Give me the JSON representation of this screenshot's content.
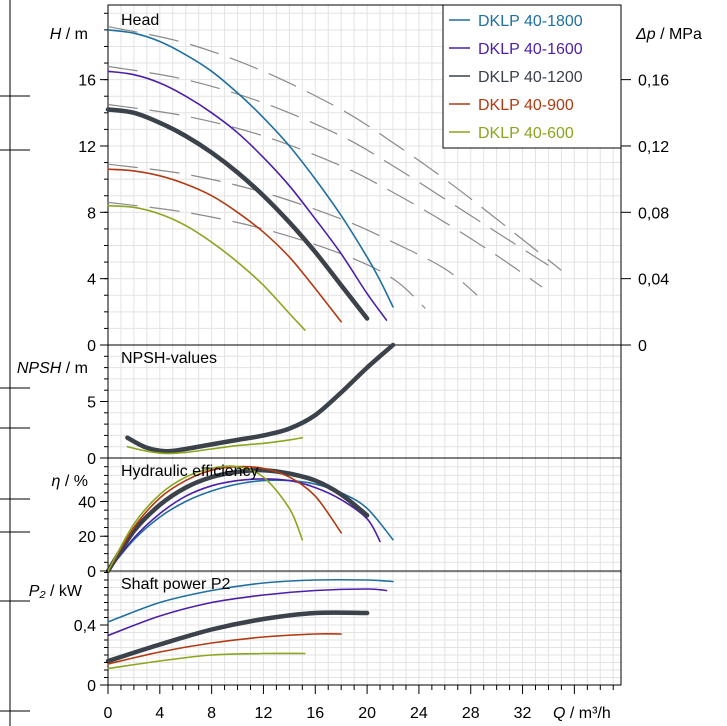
{
  "colors": {
    "DKLP 40-1800": "#1f6fa0",
    "DKLP 40-1600": "#4b1fa8",
    "DKLP 40-1200": "#3b424a",
    "DKLP 40-900": "#b23a12",
    "DKLP 40-600": "#8aa61e",
    "grid": "#e3e3e3",
    "dashed": "#8a8a8a"
  },
  "legend": [
    "DKLP 40-1800",
    "DKLP 40-1600",
    "DKLP 40-1200",
    "DKLP 40-900",
    "DKLP 40-600"
  ],
  "chart_data": [
    {
      "type": "line",
      "panel": "Head",
      "title": "Head",
      "ylabel_var": "H",
      "ylabel_unit": " / m",
      "y2label_var": "Δp",
      "y2label_unit": " / MPa",
      "ylim": [
        0,
        20.5
      ],
      "yticks": [
        "0",
        "4",
        "8",
        "12",
        "16"
      ],
      "y2ticks": [
        "0",
        "0,04",
        "0,08",
        "0,12",
        "0,16"
      ],
      "series": [
        {
          "name": "DKLP 40-1800",
          "x": [
            0,
            2,
            4,
            6,
            8,
            10,
            12,
            14,
            16,
            18,
            20,
            21,
            22
          ],
          "y": [
            19.0,
            18.8,
            18.3,
            17.5,
            16.5,
            15.2,
            13.7,
            12.0,
            10.0,
            7.8,
            5.3,
            3.9,
            2.3
          ]
        },
        {
          "name": "DKLP 40-1600",
          "x": [
            0,
            2,
            4,
            6,
            8,
            10,
            12,
            14,
            16,
            18,
            20,
            21.5
          ],
          "y": [
            16.5,
            16.3,
            15.8,
            15.0,
            14.0,
            12.8,
            11.3,
            9.6,
            7.6,
            5.5,
            3.1,
            1.5
          ]
        },
        {
          "name": "DKLP 40-1200",
          "x": [
            0,
            2,
            4,
            6,
            8,
            10,
            12,
            14,
            16,
            18,
            20
          ],
          "y": [
            14.2,
            14.0,
            13.4,
            12.6,
            11.6,
            10.4,
            9.0,
            7.4,
            5.6,
            3.6,
            1.6
          ]
        },
        {
          "name": "DKLP 40-900",
          "x": [
            0,
            2,
            4,
            6,
            8,
            10,
            12,
            14,
            16,
            18
          ],
          "y": [
            10.6,
            10.5,
            10.2,
            9.7,
            9.0,
            8.0,
            6.8,
            5.3,
            3.4,
            1.4
          ]
        },
        {
          "name": "DKLP 40-600",
          "x": [
            0,
            2,
            4,
            6,
            8,
            10,
            12,
            14,
            15.2
          ],
          "y": [
            8.4,
            8.3,
            7.9,
            7.2,
            6.2,
            5.0,
            3.6,
            1.9,
            0.9
          ]
        }
      ],
      "dashed_series": [
        {
          "x": [
            0,
            6,
            12,
            18,
            22,
            26,
            30,
            35
          ],
          "y": [
            19.2,
            18.2,
            16.5,
            14.2,
            12.2,
            10.0,
            7.6,
            4.5
          ]
        },
        {
          "x": [
            0,
            6,
            12,
            18,
            22,
            26,
            30,
            34
          ],
          "y": [
            16.8,
            16.0,
            14.6,
            12.6,
            10.8,
            8.8,
            6.8,
            4.8
          ]
        },
        {
          "x": [
            0,
            6,
            12,
            18,
            22,
            26,
            30,
            33.5
          ],
          "y": [
            14.5,
            13.8,
            12.6,
            10.8,
            9.2,
            7.4,
            5.4,
            3.5
          ]
        },
        {
          "x": [
            0,
            6,
            12,
            18,
            22,
            26,
            28.5
          ],
          "y": [
            10.9,
            10.3,
            9.2,
            7.6,
            6.2,
            4.6,
            3.0
          ]
        },
        {
          "x": [
            0,
            6,
            12,
            18,
            22,
            24.5
          ],
          "y": [
            8.6,
            8.0,
            7.0,
            5.5,
            4.0,
            2.2
          ]
        }
      ]
    },
    {
      "type": "line",
      "panel": "NPSH",
      "title": "NPSH-values",
      "ylabel_var": "NPSH",
      "ylabel_unit": " / m",
      "ylim": [
        0,
        10
      ],
      "yticks": [
        "0",
        "5"
      ],
      "series": [
        {
          "name": "DKLP 40-1200",
          "x": [
            1.5,
            3,
            4.5,
            6,
            8,
            10,
            12,
            14,
            16,
            18,
            20,
            22
          ],
          "y": [
            1.8,
            0.9,
            0.6,
            0.8,
            1.2,
            1.6,
            2.0,
            2.6,
            3.8,
            5.8,
            8.0,
            10.0
          ]
        },
        {
          "name": "DKLP 40-600",
          "x": [
            1.5,
            3,
            4.5,
            6,
            8,
            10,
            12,
            14,
            15
          ],
          "y": [
            1.0,
            0.6,
            0.4,
            0.5,
            0.8,
            1.1,
            1.3,
            1.6,
            1.8
          ]
        }
      ]
    },
    {
      "type": "line",
      "panel": "Efficiency",
      "title": "Hydraulic efficiency",
      "ylabel_var": "η",
      "ylabel_unit": " / %",
      "ylim": [
        0,
        65
      ],
      "yticks": [
        "0",
        "20",
        "40"
      ],
      "series": [
        {
          "name": "DKLP 40-1800",
          "x": [
            0,
            2,
            4,
            6,
            8,
            10,
            12,
            14,
            16,
            18,
            20,
            22
          ],
          "y": [
            0,
            18,
            31,
            40,
            46,
            50,
            52,
            52,
            50,
            45,
            36,
            18
          ]
        },
        {
          "name": "DKLP 40-1600",
          "x": [
            0,
            2,
            4,
            6,
            8,
            10,
            12,
            14,
            16,
            18,
            20,
            21
          ],
          "y": [
            0,
            19,
            33,
            43,
            49,
            52,
            53,
            52,
            48,
            41,
            30,
            17
          ]
        },
        {
          "name": "DKLP 40-1200",
          "x": [
            0,
            2,
            4,
            6,
            8,
            10,
            12,
            14,
            16,
            18,
            20
          ],
          "y": [
            0,
            23,
            38,
            48,
            54,
            57,
            58,
            56,
            52,
            44,
            32
          ]
        },
        {
          "name": "DKLP 40-900",
          "x": [
            0,
            2,
            4,
            6,
            8,
            10,
            12,
            14,
            16,
            18
          ],
          "y": [
            0,
            25,
            42,
            52,
            58,
            60,
            59,
            54,
            43,
            22
          ]
        },
        {
          "name": "DKLP 40-600",
          "x": [
            0,
            2,
            4,
            6,
            8,
            10,
            12,
            14,
            15
          ],
          "y": [
            0,
            27,
            44,
            54,
            59,
            60,
            54,
            36,
            18
          ]
        }
      ]
    },
    {
      "type": "line",
      "panel": "Power",
      "title": "Shaft power P2",
      "ylabel_var": "P₂",
      "ylabel_unit": " / kW",
      "ylim": [
        0,
        0.76
      ],
      "yticks": [
        "0",
        "0,4"
      ],
      "series": [
        {
          "name": "DKLP 40-1800",
          "x": [
            0,
            4,
            8,
            12,
            16,
            20,
            22
          ],
          "y": [
            0.42,
            0.55,
            0.63,
            0.68,
            0.7,
            0.7,
            0.69
          ]
        },
        {
          "name": "DKLP 40-1600",
          "x": [
            0,
            4,
            8,
            12,
            16,
            20,
            21.5
          ],
          "y": [
            0.33,
            0.46,
            0.55,
            0.6,
            0.63,
            0.64,
            0.63
          ]
        },
        {
          "name": "DKLP 40-1200",
          "x": [
            0,
            4,
            8,
            12,
            16,
            20
          ],
          "y": [
            0.16,
            0.27,
            0.37,
            0.44,
            0.48,
            0.48
          ]
        },
        {
          "name": "DKLP 40-900",
          "x": [
            0,
            4,
            8,
            12,
            16,
            18
          ],
          "y": [
            0.14,
            0.22,
            0.28,
            0.32,
            0.34,
            0.34
          ]
        },
        {
          "name": "DKLP 40-600",
          "x": [
            0,
            4,
            8,
            12,
            15.2
          ],
          "y": [
            0.11,
            0.16,
            0.2,
            0.21,
            0.21
          ]
        }
      ]
    }
  ],
  "x_axis": {
    "label_var": "Q",
    "label_unit": " / m³/h",
    "ticks": [
      "0",
      "4",
      "8",
      "12",
      "16",
      "20",
      "24",
      "28",
      "32"
    ]
  }
}
